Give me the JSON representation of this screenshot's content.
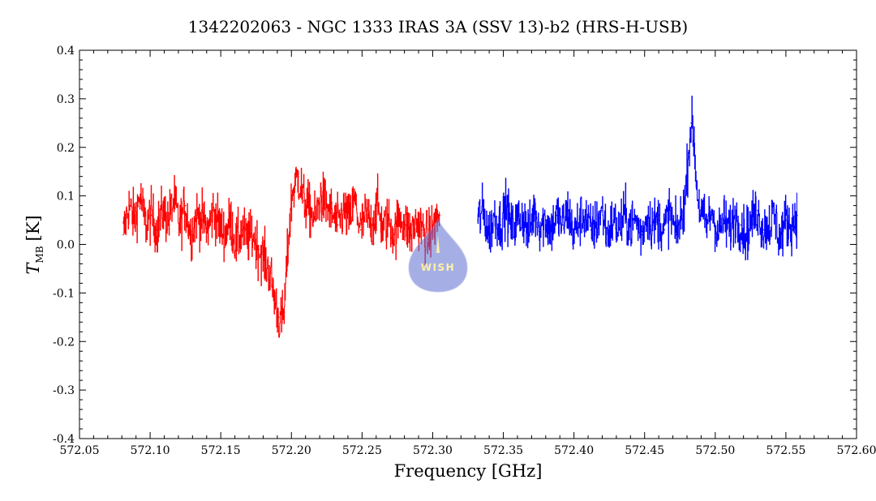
{
  "chart_data": {
    "type": "line",
    "title": "1342202063 - NGC 1333 IRAS 3A (SSV 13)-b2 (HRS-H-USB)",
    "xlabel": "Frequency [GHz]",
    "ylabel": "T",
    "ylabel_subscript": "MB",
    "ylabel_unit": "[K]",
    "xlim": [
      572.05,
      572.6
    ],
    "ylim": [
      -0.4,
      0.4
    ],
    "x_ticks": [
      "572.05",
      "572.10",
      "572.15",
      "572.20",
      "572.25",
      "572.30",
      "572.35",
      "572.40",
      "572.45",
      "572.50",
      "572.55",
      "572.60"
    ],
    "y_ticks": [
      "-0.4",
      "-0.3",
      "-0.2",
      "-0.1",
      "0.0",
      "0.1",
      "0.2",
      "0.3",
      "0.4"
    ],
    "grid": false,
    "legend": "none",
    "series": [
      {
        "color": "#ff0000",
        "x": [
          572.081,
          572.085,
          572.089,
          572.093,
          572.097,
          572.101,
          572.105,
          572.109,
          572.113,
          572.117,
          572.121,
          572.125,
          572.129,
          572.133,
          572.137,
          572.141,
          572.145,
          572.149,
          572.153,
          572.157,
          572.161,
          572.165,
          572.169,
          572.173,
          572.177,
          572.181,
          572.185,
          572.187,
          572.189,
          572.191,
          572.193,
          572.195,
          572.197,
          572.199,
          572.201,
          572.205,
          572.209,
          572.213,
          572.217,
          572.221,
          572.225,
          572.229,
          572.233,
          572.237,
          572.241,
          572.245,
          572.249,
          572.253,
          572.257,
          572.261,
          572.265,
          572.269,
          572.273,
          572.277,
          572.281,
          572.285,
          572.289,
          572.293,
          572.297,
          572.301,
          572.305
        ],
        "y": [
          0.02,
          0.08,
          0.05,
          0.1,
          0.04,
          0.06,
          0.03,
          0.07,
          0.05,
          0.09,
          0.04,
          0.08,
          0.02,
          0.06,
          0.05,
          0.03,
          0.07,
          0.04,
          0.02,
          0.05,
          0.0,
          0.03,
          0.01,
          0.02,
          -0.01,
          -0.03,
          -0.06,
          -0.09,
          -0.12,
          -0.15,
          -0.16,
          -0.14,
          -0.04,
          0.05,
          0.11,
          0.14,
          0.09,
          0.07,
          0.05,
          0.1,
          0.08,
          0.06,
          0.04,
          0.07,
          0.05,
          0.09,
          0.03,
          0.06,
          0.04,
          0.08,
          0.03,
          0.05,
          0.02,
          0.06,
          0.04,
          0.02,
          0.05,
          0.03,
          0.01,
          0.04,
          0.06
        ]
      },
      {
        "color": "#0000ff",
        "x": [
          572.332,
          572.336,
          572.34,
          572.344,
          572.348,
          572.352,
          572.356,
          572.36,
          572.364,
          572.368,
          572.372,
          572.376,
          572.38,
          572.384,
          572.388,
          572.392,
          572.396,
          572.4,
          572.404,
          572.408,
          572.412,
          572.416,
          572.42,
          572.424,
          572.428,
          572.432,
          572.436,
          572.44,
          572.444,
          572.448,
          572.452,
          572.456,
          572.46,
          572.464,
          572.468,
          572.472,
          572.476,
          572.479,
          572.481,
          572.483,
          572.485,
          572.487,
          572.49,
          572.494,
          572.498,
          572.502,
          572.506,
          572.51,
          572.514,
          572.518,
          572.522,
          572.526,
          572.53,
          572.534,
          572.538,
          572.542,
          572.546,
          572.55,
          572.554,
          572.558
        ],
        "y": [
          0.05,
          0.07,
          0.02,
          0.06,
          0.04,
          0.08,
          0.03,
          0.05,
          0.06,
          0.02,
          0.07,
          0.04,
          0.05,
          0.03,
          0.06,
          0.04,
          0.07,
          0.02,
          0.05,
          0.06,
          0.03,
          0.04,
          0.07,
          0.02,
          0.05,
          0.03,
          0.06,
          0.04,
          0.05,
          0.02,
          0.06,
          0.04,
          0.05,
          0.03,
          0.07,
          0.02,
          0.05,
          0.1,
          0.18,
          0.25,
          0.22,
          0.12,
          0.06,
          0.04,
          0.07,
          0.02,
          0.05,
          0.03,
          0.06,
          0.04,
          0.02,
          0.05,
          0.07,
          0.03,
          0.04,
          0.06,
          0.01,
          0.05,
          0.04,
          0.06
        ]
      }
    ]
  }
}
